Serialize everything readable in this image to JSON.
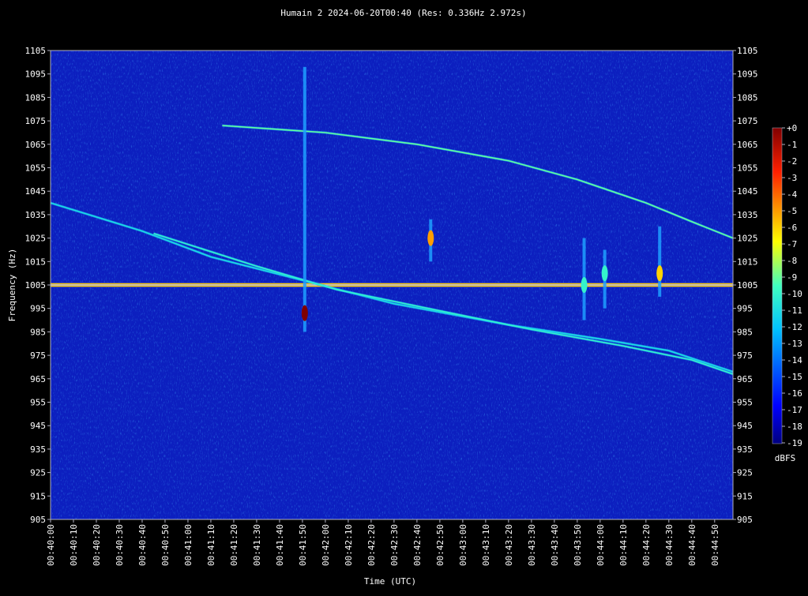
{
  "chart_data": {
    "type": "heatmap",
    "title": "Humain 2 2024-06-20T00:40 (Res: 0.336Hz 2.972s)",
    "xlabel": "Time (UTC)",
    "ylabel": "Frequency (Hz)",
    "ylim": [
      905,
      1105
    ],
    "xlim": [
      "00:40:00",
      "00:44:58"
    ],
    "y_ticks": [
      905,
      915,
      925,
      935,
      945,
      955,
      965,
      975,
      985,
      995,
      1005,
      1015,
      1025,
      1035,
      1045,
      1055,
      1065,
      1075,
      1085,
      1095,
      1105
    ],
    "x_ticks": [
      "00:40:00",
      "00:40:10",
      "00:40:20",
      "00:40:30",
      "00:40:40",
      "00:40:50",
      "00:41:00",
      "00:41:10",
      "00:41:20",
      "00:41:30",
      "00:41:40",
      "00:41:50",
      "00:42:00",
      "00:42:10",
      "00:42:20",
      "00:42:30",
      "00:42:40",
      "00:42:50",
      "00:43:00",
      "00:43:10",
      "00:43:20",
      "00:43:30",
      "00:43:40",
      "00:43:50",
      "00:44:00",
      "00:44:10",
      "00:44:20",
      "00:44:30",
      "00:44:40",
      "00:44:50"
    ],
    "colorbar": {
      "label": "dBFS",
      "range": [
        -19,
        0
      ],
      "ticks": [
        "+0",
        "-1",
        "-2",
        "-3",
        "-4",
        "-5",
        "-6",
        "-7",
        "-8",
        "-9",
        "-10",
        "-11",
        "-12",
        "-13",
        "-14",
        "-15",
        "-16",
        "-17",
        "-18",
        "-19"
      ]
    },
    "traces": [
      {
        "kind": "carrier",
        "freq_hz": 1005,
        "level_dbfs": -5
      },
      {
        "kind": "meteor-upper",
        "points": [
          [
            0,
            1040
          ],
          [
            40,
            1028
          ],
          [
            70,
            1017
          ],
          [
            110,
            1007
          ],
          [
            150,
            997
          ],
          [
            200,
            988
          ],
          [
            240,
            982
          ],
          [
            270,
            977
          ],
          [
            298,
            968
          ]
        ],
        "level_dbfs": -11
      },
      {
        "kind": "meteor-lower",
        "points": [
          [
            45,
            1027
          ],
          [
            90,
            1013
          ],
          [
            125,
            1003
          ],
          [
            170,
            994
          ],
          [
            210,
            986
          ],
          [
            250,
            979
          ],
          [
            280,
            973
          ],
          [
            298,
            967
          ]
        ],
        "level_dbfs": -10
      },
      {
        "kind": "arc",
        "points": [
          [
            75,
            1073
          ],
          [
            120,
            1070
          ],
          [
            160,
            1065
          ],
          [
            200,
            1058
          ],
          [
            230,
            1050
          ],
          [
            260,
            1040
          ],
          [
            280,
            1032
          ],
          [
            298,
            1025
          ]
        ],
        "level_dbfs": -9
      },
      {
        "kind": "burst",
        "time_s": 111,
        "freq_range": [
          985,
          1098
        ],
        "peak_freq": 993,
        "level_dbfs": 0
      },
      {
        "kind": "burst",
        "time_s": 166,
        "freq_range": [
          1015,
          1033
        ],
        "peak_freq": 1025,
        "level_dbfs": -5
      },
      {
        "kind": "burst",
        "time_s": 266,
        "freq_range": [
          1000,
          1030
        ],
        "peak_freq": 1010,
        "level_dbfs": -6
      },
      {
        "kind": "burst",
        "time_s": 233,
        "freq_range": [
          990,
          1025
        ],
        "peak_freq": 1005,
        "level_dbfs": -10
      },
      {
        "kind": "burst",
        "time_s": 242,
        "freq_range": [
          995,
          1020
        ],
        "peak_freq": 1010,
        "level_dbfs": -10
      }
    ],
    "colors": {
      "background": "#0c1fbf",
      "axes": "#b0b0c0"
    }
  }
}
